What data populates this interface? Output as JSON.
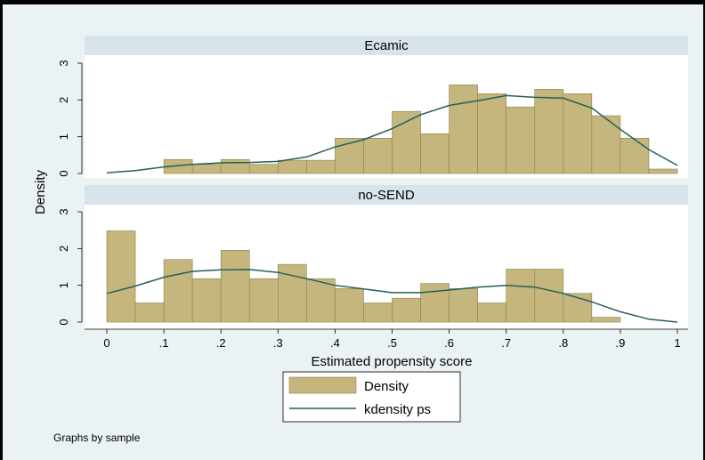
{
  "chart_data": {
    "type": "bar",
    "ylabel": "Density",
    "xlabel": "Estimated propensity score",
    "note": "Graphs by sample",
    "xlim": [
      0,
      1
    ],
    "ylim": [
      0,
      3
    ],
    "bin_width": 0.05,
    "x_ticks": [
      0,
      0.1,
      0.2,
      0.3,
      0.4,
      0.5,
      0.6,
      0.7,
      0.8,
      0.9,
      1
    ],
    "x_tick_labels": [
      "0",
      ".1",
      ".2",
      ".3",
      ".4",
      ".5",
      ".6",
      ".7",
      ".8",
      ".9",
      "1"
    ],
    "y_ticks": [
      0,
      1,
      2,
      3
    ],
    "y_tick_labels": [
      "0",
      "1",
      "2",
      "3"
    ],
    "legend": {
      "position": "bottom-center",
      "entries": [
        "Density",
        "kdensity ps"
      ]
    },
    "colors": {
      "bar_fill": "#c5b67e",
      "bar_edge": "#8b8049",
      "kde_line": "#23605c",
      "strip_bg": "#d8e4ec",
      "panel_bg": "#ffffff",
      "outer_bg": "#eaf2f3"
    },
    "panels": [
      {
        "title": "Ecamic",
        "bins": [
          {
            "x0": 0.1,
            "x1": 0.15,
            "density": 0.38
          },
          {
            "x0": 0.15,
            "x1": 0.2,
            "density": 0.25
          },
          {
            "x0": 0.2,
            "x1": 0.25,
            "density": 0.38
          },
          {
            "x0": 0.25,
            "x1": 0.3,
            "density": 0.25
          },
          {
            "x0": 0.3,
            "x1": 0.35,
            "density": 0.36
          },
          {
            "x0": 0.35,
            "x1": 0.4,
            "density": 0.36
          },
          {
            "x0": 0.4,
            "x1": 0.45,
            "density": 0.96
          },
          {
            "x0": 0.45,
            "x1": 0.5,
            "density": 0.96
          },
          {
            "x0": 0.5,
            "x1": 0.55,
            "density": 1.69
          },
          {
            "x0": 0.55,
            "x1": 0.6,
            "density": 1.08
          },
          {
            "x0": 0.6,
            "x1": 0.65,
            "density": 2.41
          },
          {
            "x0": 0.65,
            "x1": 0.7,
            "density": 2.17
          },
          {
            "x0": 0.7,
            "x1": 0.75,
            "density": 1.81
          },
          {
            "x0": 0.75,
            "x1": 0.8,
            "density": 2.29
          },
          {
            "x0": 0.8,
            "x1": 0.85,
            "density": 2.17
          },
          {
            "x0": 0.85,
            "x1": 0.9,
            "density": 1.57
          },
          {
            "x0": 0.9,
            "x1": 0.95,
            "density": 0.96
          },
          {
            "x0": 0.95,
            "x1": 1.0,
            "density": 0.12
          }
        ],
        "kdensity": {
          "x": [
            0.0,
            0.05,
            0.1,
            0.15,
            0.2,
            0.25,
            0.3,
            0.35,
            0.4,
            0.45,
            0.5,
            0.55,
            0.6,
            0.65,
            0.7,
            0.75,
            0.8,
            0.85,
            0.9,
            0.95,
            1.0
          ],
          "y": [
            0.02,
            0.08,
            0.18,
            0.25,
            0.29,
            0.3,
            0.33,
            0.45,
            0.72,
            0.92,
            1.22,
            1.6,
            1.85,
            1.98,
            2.12,
            2.07,
            2.05,
            1.78,
            1.2,
            0.65,
            0.22
          ]
        }
      },
      {
        "title": "no-SEND",
        "bins": [
          {
            "x0": 0.0,
            "x1": 0.05,
            "density": 2.48
          },
          {
            "x0": 0.05,
            "x1": 0.1,
            "density": 0.52
          },
          {
            "x0": 0.1,
            "x1": 0.15,
            "density": 1.7
          },
          {
            "x0": 0.15,
            "x1": 0.2,
            "density": 1.18
          },
          {
            "x0": 0.2,
            "x1": 0.25,
            "density": 1.95
          },
          {
            "x0": 0.25,
            "x1": 0.3,
            "density": 1.18
          },
          {
            "x0": 0.3,
            "x1": 0.35,
            "density": 1.57
          },
          {
            "x0": 0.35,
            "x1": 0.4,
            "density": 1.18
          },
          {
            "x0": 0.4,
            "x1": 0.45,
            "density": 0.91
          },
          {
            "x0": 0.45,
            "x1": 0.5,
            "density": 0.52
          },
          {
            "x0": 0.5,
            "x1": 0.55,
            "density": 0.65
          },
          {
            "x0": 0.55,
            "x1": 0.6,
            "density": 1.05
          },
          {
            "x0": 0.6,
            "x1": 0.65,
            "density": 0.91
          },
          {
            "x0": 0.65,
            "x1": 0.7,
            "density": 0.52
          },
          {
            "x0": 0.7,
            "x1": 0.75,
            "density": 1.44
          },
          {
            "x0": 0.75,
            "x1": 0.8,
            "density": 1.44
          },
          {
            "x0": 0.8,
            "x1": 0.85,
            "density": 0.78
          },
          {
            "x0": 0.85,
            "x1": 0.9,
            "density": 0.13
          }
        ],
        "kdensity": {
          "x": [
            0.0,
            0.05,
            0.1,
            0.15,
            0.2,
            0.25,
            0.3,
            0.35,
            0.4,
            0.45,
            0.5,
            0.55,
            0.6,
            0.65,
            0.7,
            0.75,
            0.8,
            0.85,
            0.9,
            0.95,
            1.0
          ],
          "y": [
            0.78,
            0.98,
            1.22,
            1.38,
            1.42,
            1.43,
            1.35,
            1.18,
            1.0,
            0.9,
            0.8,
            0.8,
            0.87,
            0.95,
            1.0,
            0.95,
            0.78,
            0.55,
            0.28,
            0.08,
            0.0
          ]
        }
      }
    ]
  }
}
